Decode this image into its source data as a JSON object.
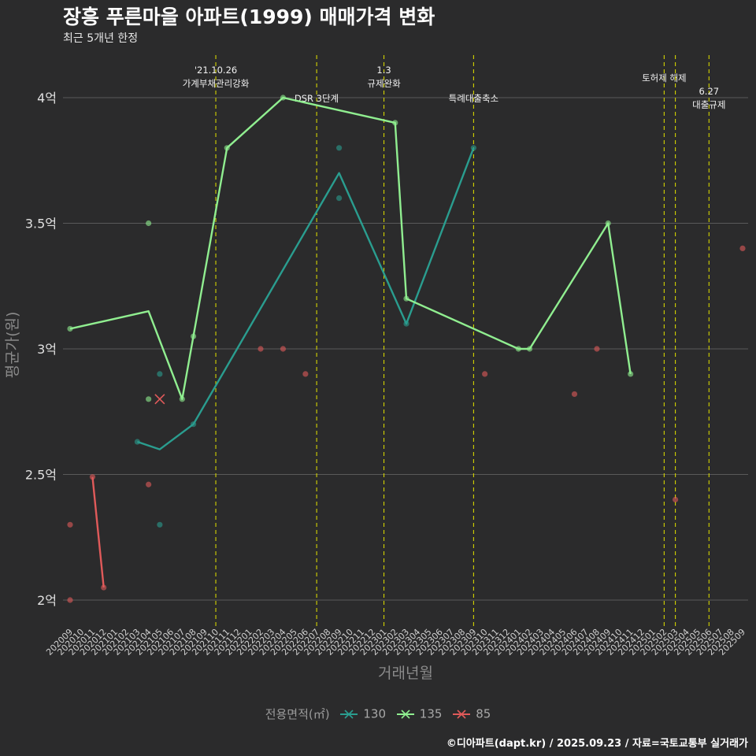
{
  "title": "장흥 푸른마을 아파트(1999) 매매가격 변화",
  "subtitle": "최근 5개년 한정",
  "caption": "©디아파트(dapt.kr) / 2025.09.23 / 자료=국토교통부 실거래가",
  "chart_data": {
    "type": "line",
    "xlabel": "거래년월",
    "ylabel": "평균가(원)",
    "ylim": [
      1.88,
      4.18
    ],
    "y_ticks": [
      2.0,
      2.5,
      3.0,
      3.5,
      4.0
    ],
    "y_tick_labels": [
      "2억",
      "2.5억",
      "3억",
      "3.5억",
      "4억"
    ],
    "categories": [
      "202009",
      "202010",
      "202011",
      "202012",
      "202101",
      "202102",
      "202103",
      "202104",
      "202105",
      "202106",
      "202107",
      "202108",
      "202109",
      "202110",
      "202111",
      "202112",
      "202201",
      "202202",
      "202203",
      "202204",
      "202205",
      "202206",
      "202207",
      "202208",
      "202209",
      "202210",
      "202211",
      "202212",
      "202301",
      "202302",
      "202303",
      "202304",
      "202305",
      "202306",
      "202307",
      "202308",
      "202309",
      "202310",
      "202311",
      "202312",
      "202401",
      "202402",
      "202403",
      "202404",
      "202405",
      "202406",
      "202407",
      "202408",
      "202409",
      "202410",
      "202411",
      "202412",
      "202501",
      "202502",
      "202503",
      "202504",
      "202505",
      "202506",
      "202507",
      "202508",
      "202509"
    ],
    "legend_title": "전용면적(㎡)",
    "series": [
      {
        "name": "130",
        "color": "#2a9d8f",
        "line": [
          [
            "202103",
            2.63
          ],
          [
            "202105",
            2.6
          ],
          [
            "202108",
            2.7
          ],
          [
            "202209",
            3.7
          ],
          [
            "202303",
            3.1
          ],
          [
            "202309",
            3.8
          ]
        ],
        "points": [
          [
            "202103",
            2.63
          ],
          [
            "202105",
            2.9
          ],
          [
            "202105",
            2.3
          ],
          [
            "202108",
            2.7
          ],
          [
            "202209",
            3.8
          ],
          [
            "202209",
            3.6
          ],
          [
            "202303",
            3.1
          ],
          [
            "202309",
            3.8
          ]
        ]
      },
      {
        "name": "135",
        "color": "#90ee90",
        "line": [
          [
            "202009",
            3.08
          ],
          [
            "202104",
            3.15
          ],
          [
            "202107",
            2.8
          ],
          [
            "202108",
            3.05
          ],
          [
            "202111",
            3.8
          ],
          [
            "202204",
            4.0
          ],
          [
            "202302",
            3.9
          ],
          [
            "202303",
            3.2
          ],
          [
            "202401",
            3.0
          ],
          [
            "202402",
            3.0
          ],
          [
            "202409",
            3.5
          ],
          [
            "202411",
            2.9
          ]
        ],
        "points": [
          [
            "202009",
            3.08
          ],
          [
            "202104",
            3.5
          ],
          [
            "202104",
            2.8
          ],
          [
            "202107",
            2.8
          ],
          [
            "202108",
            3.05
          ],
          [
            "202111",
            3.8
          ],
          [
            "202204",
            4.0
          ],
          [
            "202302",
            3.9
          ],
          [
            "202303",
            3.2
          ],
          [
            "202401",
            3.0
          ],
          [
            "202402",
            3.0
          ],
          [
            "202409",
            3.5
          ],
          [
            "202411",
            2.9
          ]
        ]
      },
      {
        "name": "85",
        "color": "#e05a5a",
        "line": [
          [
            "202011",
            2.49
          ],
          [
            "202012",
            2.05
          ]
        ],
        "points": [
          [
            "202009",
            2.3
          ],
          [
            "202009",
            2.0
          ],
          [
            "202011",
            2.49
          ],
          [
            "202012",
            2.05
          ],
          [
            "202104",
            2.46
          ],
          [
            "202202",
            3.0
          ],
          [
            "202204",
            3.0
          ],
          [
            "202206",
            2.9
          ],
          [
            "202310",
            2.9
          ],
          [
            "202406",
            2.82
          ],
          [
            "202408",
            3.0
          ],
          [
            "202503",
            2.4
          ],
          [
            "202509",
            3.4
          ]
        ]
      }
    ],
    "crosses": [
      [
        "202105",
        2.8,
        "85"
      ]
    ],
    "annotations": [
      {
        "x": "202110",
        "lines": [
          "'21.10.26",
          "가계부채관리강화"
        ],
        "level": "high"
      },
      {
        "x": "202207",
        "lines": [
          "DSR 3단계"
        ],
        "level": "low"
      },
      {
        "x": "202301",
        "lines": [
          "1.3",
          "규제완화"
        ],
        "level": "high"
      },
      {
        "x": "202309",
        "lines": [
          "특례대출축소"
        ],
        "level": "low"
      },
      {
        "x": "202502",
        "lines": [
          "토허제 해제"
        ],
        "level": "mid"
      },
      {
        "x": "202503",
        "lines": [],
        "level": "mid"
      },
      {
        "x": "202506",
        "lines": [
          "6.27",
          "대출규제"
        ],
        "level": "lowmid"
      }
    ]
  }
}
